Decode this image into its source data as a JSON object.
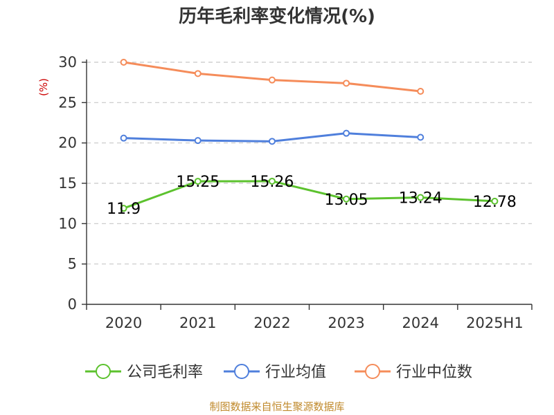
{
  "chart_data": {
    "type": "line",
    "title": "历年毛利率变化情况(%)",
    "ylabel": "(%)",
    "categories": [
      "2020",
      "2021",
      "2022",
      "2023",
      "2024",
      "2025H1"
    ],
    "ylim": [
      0,
      30
    ],
    "yticks": [
      "0",
      "5",
      "10",
      "15",
      "20",
      "25",
      "30"
    ],
    "grid": true,
    "legend_position": "bottom",
    "series": [
      {
        "name": "公司毛利率",
        "color": "#5cc22e",
        "values": [
          11.9,
          15.25,
          15.26,
          13.05,
          13.24,
          12.78
        ],
        "labels": [
          "11.9",
          "15.25",
          "15.26",
          "13.05",
          "13.24",
          "12.78"
        ]
      },
      {
        "name": "行业均值",
        "color": "#4f7fdc",
        "values": [
          20.6,
          20.3,
          20.2,
          21.2,
          20.7,
          null
        ]
      },
      {
        "name": "行业中位数",
        "color": "#f58c5a",
        "values": [
          30.0,
          28.6,
          27.8,
          27.4,
          26.4,
          null
        ]
      }
    ]
  },
  "source": "制图数据来自恒生聚源数据库"
}
